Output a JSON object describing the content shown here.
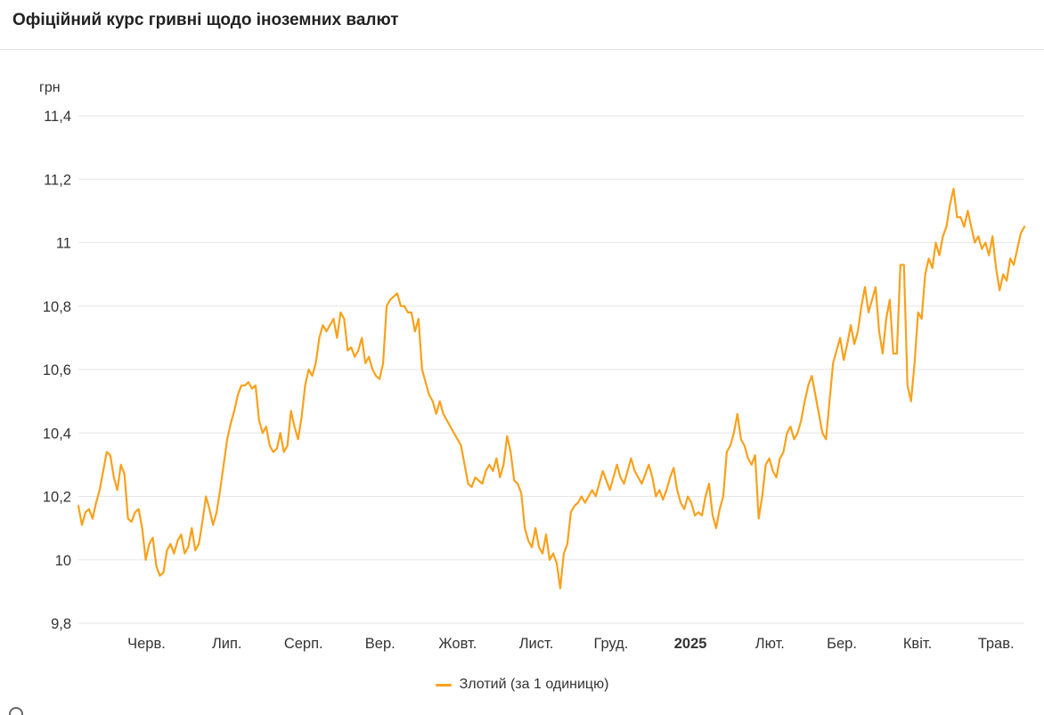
{
  "header": {
    "title": "Офіційний курс гривні щодо іноземних валют"
  },
  "axes": {
    "y_unit_label": "грн"
  },
  "legend": {
    "items": [
      {
        "label": "Злотий (за 1 одиницю)",
        "color": "#F9A11B"
      }
    ]
  },
  "chart_data": {
    "type": "line",
    "title": "Офіційний курс гривні щодо іноземних валют",
    "xlabel": "",
    "ylabel": "грн",
    "ylim": [
      9.8,
      11.4
    ],
    "grid": "horizontal-only",
    "legend_position": "bottom-center",
    "line_color": "#F9A11B",
    "grid_color": "#e6e6e6",
    "axis_text_color": "#333333",
    "y_tick_values": [
      9.8,
      10,
      10.2,
      10.4,
      10.6,
      10.8,
      11,
      11.2,
      11.4
    ],
    "y_tick_labels": [
      "9,8",
      "10",
      "10,2",
      "10,4",
      "10,6",
      "10,8",
      "11",
      "11,2",
      "11,4"
    ],
    "x_ticks": [
      {
        "label": "Черв.",
        "pos": 0.072,
        "bold": false
      },
      {
        "label": "Лип.",
        "pos": 0.157,
        "bold": false
      },
      {
        "label": "Серп.",
        "pos": 0.238,
        "bold": false
      },
      {
        "label": "Вер.",
        "pos": 0.319,
        "bold": false
      },
      {
        "label": "Жовт.",
        "pos": 0.401,
        "bold": false
      },
      {
        "label": "Лист.",
        "pos": 0.484,
        "bold": false
      },
      {
        "label": "Груд.",
        "pos": 0.563,
        "bold": false
      },
      {
        "label": "2025",
        "pos": 0.647,
        "bold": true
      },
      {
        "label": "Лют.",
        "pos": 0.731,
        "bold": false
      },
      {
        "label": "Бер.",
        "pos": 0.807,
        "bold": false
      },
      {
        "label": "Квіт.",
        "pos": 0.887,
        "bold": false
      },
      {
        "label": "Трав.",
        "pos": 0.97,
        "bold": false
      }
    ],
    "series": [
      {
        "name": "Злотий (за 1 одиницю)",
        "color": "#F9A11B",
        "values": [
          10.17,
          10.11,
          10.15,
          10.16,
          10.13,
          10.18,
          10.22,
          10.28,
          10.34,
          10.33,
          10.26,
          10.22,
          10.3,
          10.27,
          10.13,
          10.12,
          10.15,
          10.16,
          10.1,
          10.0,
          10.05,
          10.07,
          9.98,
          9.95,
          9.96,
          10.03,
          10.05,
          10.02,
          10.06,
          10.08,
          10.02,
          10.04,
          10.1,
          10.03,
          10.05,
          10.12,
          10.2,
          10.16,
          10.11,
          10.15,
          10.22,
          10.3,
          10.38,
          10.43,
          10.47,
          10.52,
          10.55,
          10.55,
          10.56,
          10.54,
          10.55,
          10.44,
          10.4,
          10.42,
          10.36,
          10.34,
          10.35,
          10.4,
          10.34,
          10.36,
          10.47,
          10.42,
          10.38,
          10.45,
          10.55,
          10.6,
          10.58,
          10.62,
          10.7,
          10.74,
          10.72,
          10.74,
          10.76,
          10.7,
          10.78,
          10.76,
          10.66,
          10.67,
          10.64,
          10.66,
          10.7,
          10.62,
          10.64,
          10.6,
          10.58,
          10.57,
          10.62,
          10.8,
          10.82,
          10.83,
          10.84,
          10.8,
          10.8,
          10.78,
          10.78,
          10.72,
          10.76,
          10.6,
          10.56,
          10.52,
          10.5,
          10.46,
          10.5,
          10.46,
          10.44,
          10.42,
          10.4,
          10.38,
          10.36,
          10.3,
          10.24,
          10.23,
          10.26,
          10.25,
          10.24,
          10.28,
          10.3,
          10.28,
          10.32,
          10.26,
          10.3,
          10.39,
          10.34,
          10.25,
          10.24,
          10.21,
          10.1,
          10.06,
          10.04,
          10.1,
          10.04,
          10.02,
          10.08,
          10.0,
          10.02,
          9.99,
          9.91,
          10.02,
          10.05,
          10.15,
          10.17,
          10.18,
          10.2,
          10.18,
          10.2,
          10.22,
          10.2,
          10.24,
          10.28,
          10.25,
          10.22,
          10.26,
          10.3,
          10.26,
          10.24,
          10.28,
          10.32,
          10.28,
          10.26,
          10.24,
          10.27,
          10.3,
          10.26,
          10.2,
          10.22,
          10.19,
          10.22,
          10.26,
          10.29,
          10.22,
          10.18,
          10.16,
          10.2,
          10.18,
          10.14,
          10.15,
          10.14,
          10.2,
          10.24,
          10.14,
          10.1,
          10.16,
          10.2,
          10.34,
          10.36,
          10.4,
          10.46,
          10.38,
          10.36,
          10.32,
          10.3,
          10.33,
          10.13,
          10.2,
          10.3,
          10.32,
          10.28,
          10.26,
          10.32,
          10.34,
          10.4,
          10.42,
          10.38,
          10.4,
          10.44,
          10.5,
          10.55,
          10.58,
          10.52,
          10.46,
          10.4,
          10.38,
          10.5,
          10.62,
          10.66,
          10.7,
          10.63,
          10.68,
          10.74,
          10.68,
          10.72,
          10.8,
          10.86,
          10.78,
          10.82,
          10.86,
          10.72,
          10.65,
          10.76,
          10.82,
          10.65,
          10.65,
          10.93,
          10.93,
          10.55,
          10.5,
          10.62,
          10.78,
          10.76,
          10.9,
          10.95,
          10.92,
          11.0,
          10.96,
          11.02,
          11.05,
          11.12,
          11.17,
          11.08,
          11.08,
          11.05,
          11.1,
          11.05,
          11.0,
          11.02,
          10.98,
          11.0,
          10.96,
          11.02,
          10.92,
          10.85,
          10.9,
          10.88,
          10.95,
          10.93,
          10.98,
          11.03,
          11.05
        ]
      }
    ]
  }
}
